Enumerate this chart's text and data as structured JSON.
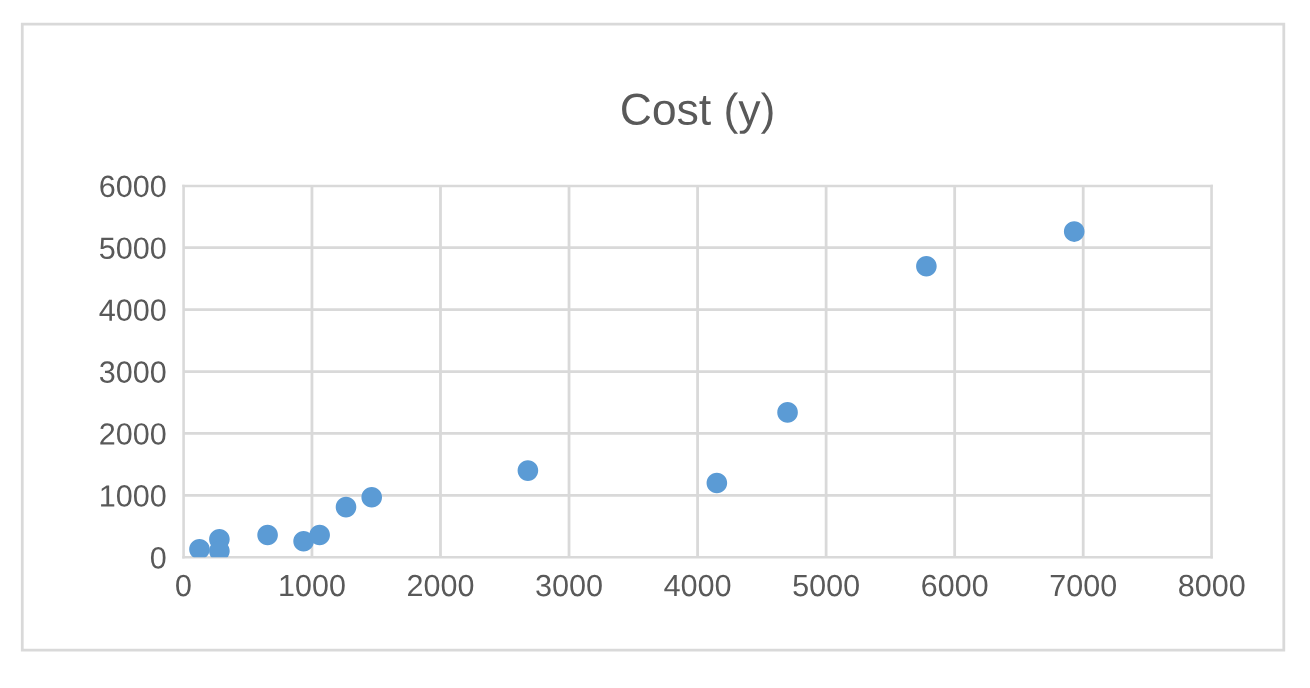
{
  "chart_data": {
    "type": "scatter",
    "title": "Cost (y)",
    "x": [
      125,
      280,
      280,
      655,
      935,
      1060,
      1265,
      1465,
      2680,
      4150,
      4700,
      5780,
      6930
    ],
    "values": [
      130,
      290,
      100,
      360,
      260,
      360,
      810,
      970,
      1400,
      1200,
      2340,
      4700,
      5260
    ],
    "color": "#5b9bd5",
    "marker": "circle",
    "xlim": [
      0,
      8000
    ],
    "xticks": [
      0,
      1000,
      2000,
      3000,
      4000,
      5000,
      6000,
      7000,
      8000
    ],
    "ylim": [
      0,
      6000
    ],
    "yticks": [
      0,
      1000,
      2000,
      3000,
      4000,
      5000,
      6000
    ],
    "grid": true
  }
}
